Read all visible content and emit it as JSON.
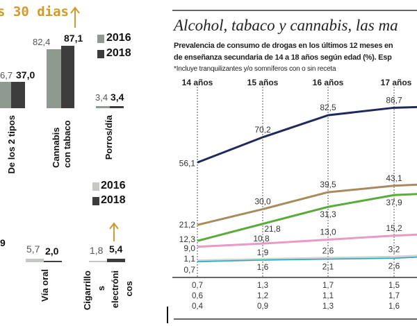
{
  "left_panel": {
    "header_fragment": "s 30 dias",
    "accent_color": "#d29a2a",
    "top_legend": [
      {
        "label": "2016",
        "color": "#8e9a90"
      },
      {
        "label": "2018",
        "color": "#3c3c3c"
      }
    ],
    "bottom_legend": [
      {
        "label": "2016",
        "color": "#c3c8c3"
      },
      {
        "label": "2018",
        "color": "#3c3c3c"
      }
    ],
    "top_groups": [
      {
        "label": "De los 2 tipos",
        "v2016_text": "6,7",
        "v2018": 37.0,
        "v2018_text": "37,0"
      },
      {
        "label": "Cannabis con tabaco",
        "v2016": 82.4,
        "v2016_text": "82,4",
        "v2018": 87.1,
        "v2018_text": "87,1"
      },
      {
        "label": "Porros/día",
        "v2016": 3.4,
        "v2016_text": "3,4",
        "v2018": 3.4,
        "v2018_text": "3,4"
      }
    ],
    "bottom_fragment_value": "9",
    "bottom_groups": [
      {
        "label": "Vía oral",
        "v2016": 5.7,
        "v2016_text": "5,7",
        "v2018": 2.0,
        "v2018_text": "2,0"
      },
      {
        "label_lines": [
          "Cigarrillo",
          "s",
          "electróni",
          "cos"
        ],
        "v2016": 1.8,
        "v2016_text": "1,8",
        "v2018": 5.4,
        "v2018_text": "5,4"
      }
    ]
  },
  "right_panel": {
    "title": "Alcohol, tabaco y cannabis, las ma",
    "subtitle_line1": "Prevalencia de consumo de drogas en los últimos 12 meses en",
    "subtitle_line2": "de enseñanza secundaria de 14 a 18 años según edad (%). Esp",
    "footnote": "*Incluye tranquilizantes y/o somníferos con o sin receta",
    "table_rows": [
      [
        "0,7",
        "1,3",
        "1,7",
        "1,5"
      ],
      [
        "0,6",
        "1,2",
        "1,1",
        "1,7"
      ],
      [
        "0,4",
        "0,9",
        "1,3",
        "1,6"
      ]
    ]
  },
  "chart_data": {
    "type": "line",
    "categories": [
      "14 años",
      "15 años",
      "16 años",
      "17 años"
    ],
    "series": [
      {
        "color": "#1f2a5c",
        "values": [
          56.1,
          70.2,
          82.5,
          86.7
        ],
        "labels": [
          "56,1",
          "70,2",
          "82,5",
          "86,7"
        ]
      },
      {
        "color": "#a88a5e",
        "values": [
          21.2,
          30.0,
          39.5,
          43.1
        ],
        "labels": [
          "21,2",
          "30,0",
          "39,5",
          "43,1"
        ]
      },
      {
        "color": "#5aac3a",
        "values": [
          12.3,
          21.8,
          31.3,
          37.9
        ],
        "labels": [
          "12,3",
          "21,8",
          "31,3",
          "37,9"
        ]
      },
      {
        "color": "#e89ac4",
        "values": [
          9.0,
          10.8,
          13.0,
          15.2
        ],
        "labels": [
          "9,0",
          "10,8",
          "13,0",
          "15,2"
        ]
      },
      {
        "color": "#cfd4cc",
        "values": [
          1.1,
          1.9,
          2.6,
          3.2
        ],
        "labels": [
          "1,1",
          "1,9",
          "2,6",
          "3,2"
        ]
      },
      {
        "color": "#2aa9c4",
        "values": [
          0.7,
          1.6,
          2.1,
          2.6
        ],
        "labels": [
          "0,7",
          "1,6",
          "2,1",
          "2,6"
        ]
      }
    ],
    "grid": "vertical dotted lines at each age"
  }
}
